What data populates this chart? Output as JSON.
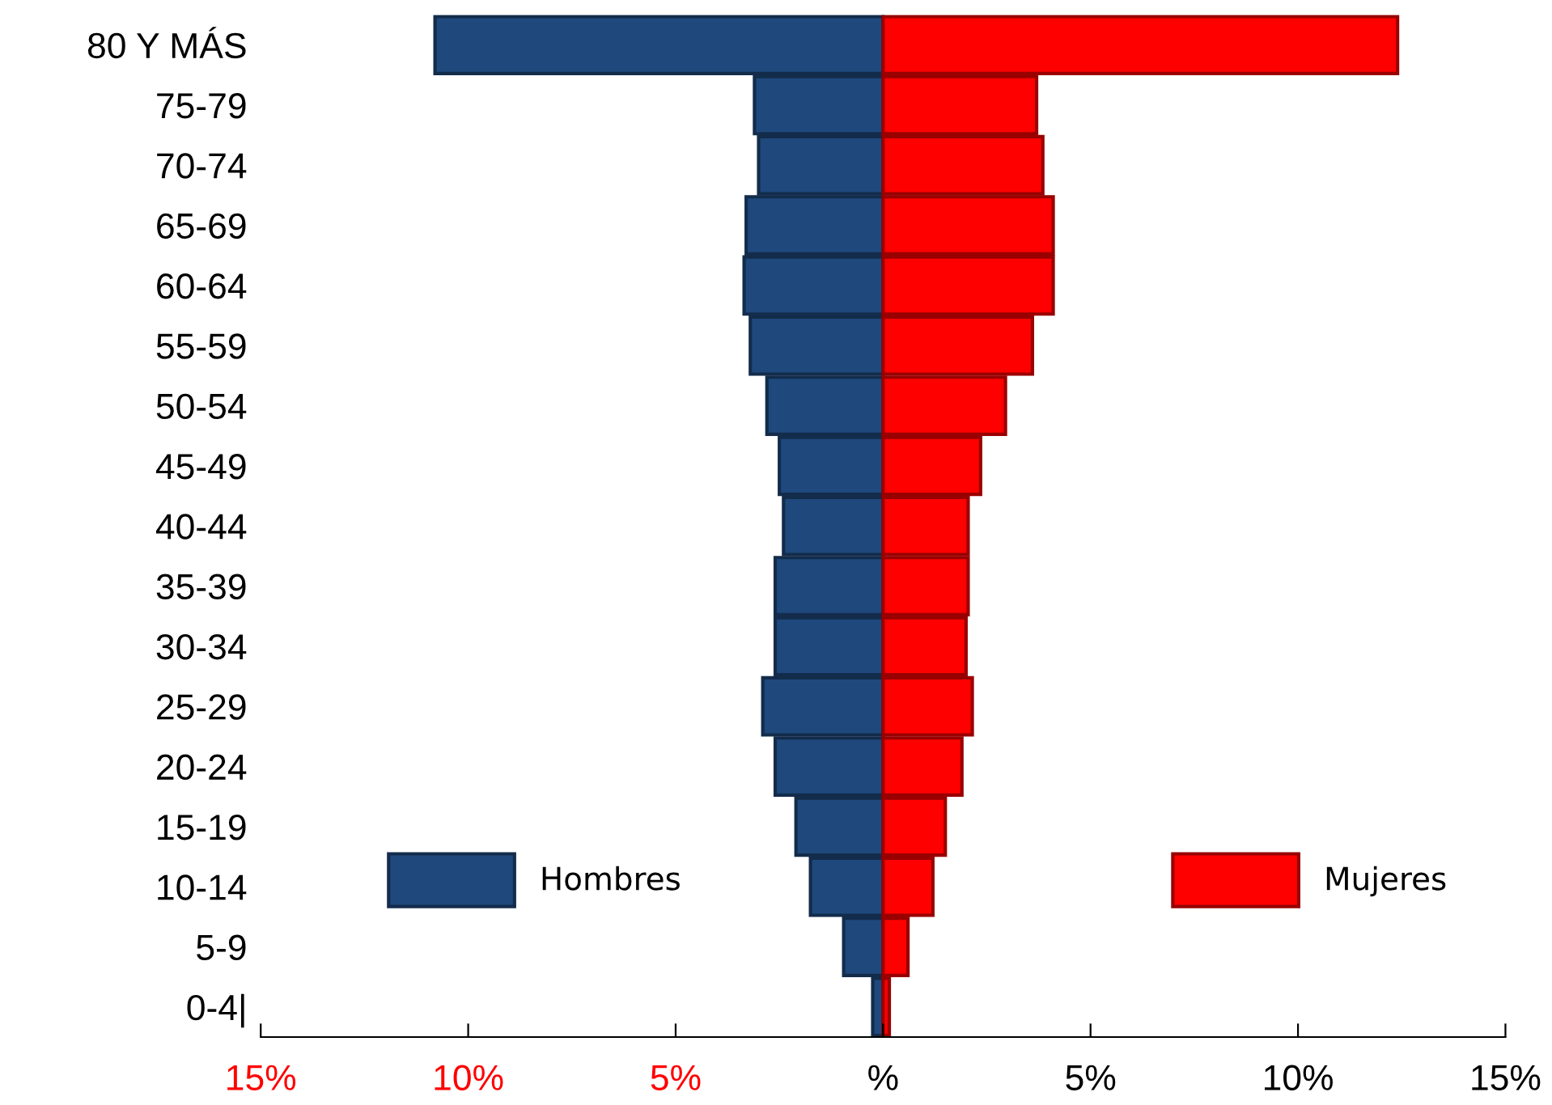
{
  "chart_data": {
    "type": "bar",
    "orientation": "horizontal",
    "categories": [
      "80 Y MÁS",
      "75-79",
      "70-74",
      "65-69",
      "60-64",
      "55-59",
      "50-54",
      "45-49",
      "40-44",
      "35-39",
      "30-34",
      "25-29",
      "20-24",
      "15-19",
      "10-14",
      "5-9",
      "0-4|"
    ],
    "series": [
      {
        "name": "Hombres",
        "color": "#1f497d",
        "values": [
          -10.8,
          -3.1,
          -3.0,
          -3.3,
          -3.35,
          -3.2,
          -2.8,
          -2.5,
          -2.4,
          -2.6,
          -2.6,
          -2.9,
          -2.6,
          -2.1,
          -1.75,
          -0.95,
          -0.25
        ]
      },
      {
        "name": "Mujeres",
        "color": "#ff0000",
        "values": [
          12.4,
          3.7,
          3.85,
          4.1,
          4.1,
          3.6,
          2.95,
          2.35,
          2.05,
          2.05,
          2.0,
          2.15,
          1.9,
          1.5,
          1.2,
          0.6,
          0.15
        ]
      }
    ],
    "xlim": [
      -15,
      15
    ],
    "xticks": [
      {
        "value": -15,
        "label": "15%"
      },
      {
        "value": -10,
        "label": "10%"
      },
      {
        "value": -5,
        "label": "5%"
      },
      {
        "value": 0,
        "label": "%"
      },
      {
        "value": 5,
        "label": "5%"
      },
      {
        "value": 10,
        "label": "10%"
      },
      {
        "value": 15,
        "label": "15%"
      }
    ],
    "grid": false,
    "legend": "bottom",
    "stacked": true
  }
}
